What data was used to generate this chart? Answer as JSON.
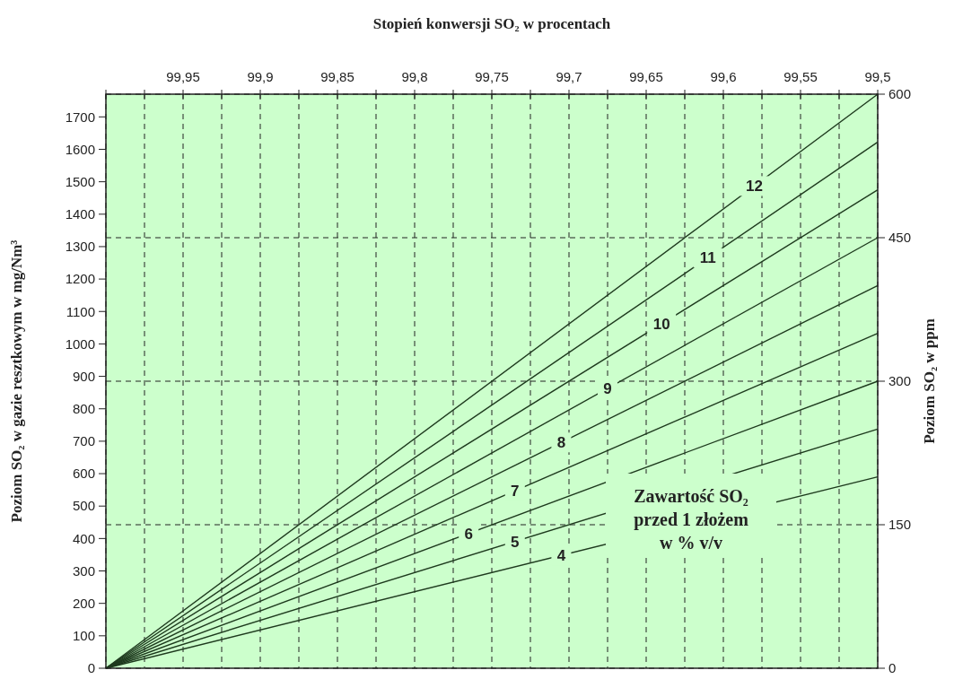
{
  "chart_data": {
    "type": "line",
    "xlabel": "Stopień konwersji SO₂ w procentach",
    "ylabel": "Poziom  SO₂ w gazie resztkowym w mg/Nm³",
    "y2label": "Poziom  SO₂ w ppm",
    "x": [
      100,
      99.5
    ],
    "xlim": [
      100,
      99.5
    ],
    "xticks": [
      {
        "value": 100,
        "label": null
      },
      {
        "value": 99.975,
        "label": null
      },
      {
        "value": 99.95,
        "label": "99,95"
      },
      {
        "value": 99.925,
        "label": null
      },
      {
        "value": 99.9,
        "label": "99,9"
      },
      {
        "value": 99.875,
        "label": null
      },
      {
        "value": 99.85,
        "label": "99,85"
      },
      {
        "value": 99.825,
        "label": null
      },
      {
        "value": 99.8,
        "label": "99,8"
      },
      {
        "value": 99.775,
        "label": null
      },
      {
        "value": 99.75,
        "label": "99,75"
      },
      {
        "value": 99.725,
        "label": null
      },
      {
        "value": 99.7,
        "label": "99,7"
      },
      {
        "value": 99.675,
        "label": null
      },
      {
        "value": 99.65,
        "label": "99,65"
      },
      {
        "value": 99.625,
        "label": null
      },
      {
        "value": 99.6,
        "label": "99,6"
      },
      {
        "value": 99.575,
        "label": null
      },
      {
        "value": 99.55,
        "label": "99,55"
      },
      {
        "value": 99.525,
        "label": null
      },
      {
        "value": 99.5,
        "label": "99,5"
      }
    ],
    "ylim": [
      0,
      1770
    ],
    "yticks": [
      0,
      100,
      200,
      300,
      400,
      500,
      600,
      700,
      800,
      900,
      1000,
      1100,
      1200,
      1300,
      1400,
      1500,
      1600,
      1700
    ],
    "y2lim": [
      0,
      600
    ],
    "y2ticks": [
      0,
      150,
      300,
      450,
      600
    ],
    "grid": true,
    "series": [
      {
        "name": "4",
        "color": "#1e3a1e",
        "axis": "y2",
        "values": [
          0,
          200
        ]
      },
      {
        "name": "5",
        "color": "#1e3a1e",
        "axis": "y2",
        "values": [
          0,
          250
        ]
      },
      {
        "name": "6",
        "color": "#1e3a1e",
        "axis": "y2",
        "values": [
          0,
          300
        ]
      },
      {
        "name": "7",
        "color": "#1e3a1e",
        "axis": "y2",
        "values": [
          0,
          350
        ]
      },
      {
        "name": "8",
        "color": "#1e3a1e",
        "axis": "y2",
        "values": [
          0,
          400
        ]
      },
      {
        "name": "9",
        "color": "#1e3a1e",
        "axis": "y2",
        "values": [
          0,
          450
        ]
      },
      {
        "name": "10",
        "color": "#1e3a1e",
        "axis": "y2",
        "values": [
          0,
          500
        ]
      },
      {
        "name": "11",
        "color": "#1e3a1e",
        "axis": "y2",
        "values": [
          0,
          550
        ]
      },
      {
        "name": "12",
        "color": "#1e3a1e",
        "axis": "y2",
        "values": [
          0,
          600
        ]
      }
    ],
    "annotations": [
      "Zawartość SO₂\nprzed 1 złożem\nw % v/v"
    ]
  }
}
